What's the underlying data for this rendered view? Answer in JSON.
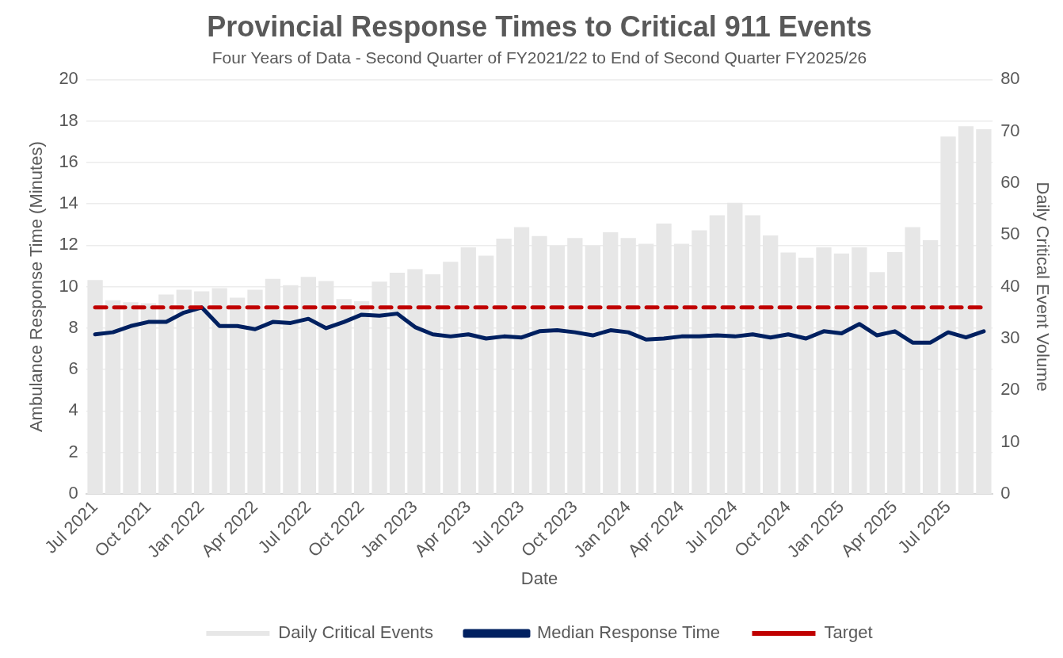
{
  "chart_data": {
    "type": "bar",
    "title": "Provincial Response Times to Critical 911 Events",
    "subtitle": "Four Years of Data - Second Quarter of FY2021/22 to End of Second Quarter FY2025/26",
    "xlabel": "Date",
    "ylabel": "Ambulance Response Time (Minutes)",
    "y2label": "Daily Critical Event Volume",
    "categories": [
      "Jul 2021",
      null,
      null,
      "Oct 2021",
      null,
      null,
      "Jan 2022",
      null,
      null,
      "Apr 2022",
      null,
      null,
      "Jul 2022",
      null,
      null,
      "Oct 2022",
      null,
      null,
      "Jan 2023",
      null,
      null,
      "Apr 2023",
      null,
      null,
      "Jul 2023",
      null,
      null,
      "Oct 2023",
      null,
      null,
      "Jan 2024",
      null,
      null,
      "Apr 2024",
      null,
      null,
      "Jul 2024",
      null,
      null,
      "Oct 2024",
      null,
      null,
      "Jan 2025",
      null,
      null,
      "Apr 2025",
      null,
      null,
      "Jul 2025",
      null,
      null
    ],
    "series": [
      {
        "name": "Daily Critical Events",
        "axis": "y2",
        "color": "#e7e7e7",
        "values": [
          41.3,
          37.4,
          37,
          36.8,
          38.5,
          39.4,
          39.1,
          39.7,
          37.9,
          39.4,
          41.5,
          40.3,
          41.9,
          41.1,
          37.6,
          37.2,
          41,
          42.7,
          43.4,
          42.4,
          44.8,
          47.6,
          46,
          49.3,
          51.5,
          49.8,
          47.9,
          49.4,
          47.9,
          50.5,
          49.4,
          48.3,
          52.2,
          48.3,
          50.9,
          53.8,
          56.2,
          53.8,
          49.9,
          46.6,
          45.6,
          47.6,
          46.4,
          47.6,
          42.8,
          46.7,
          51.5,
          49,
          69,
          71,
          70.4
        ]
      },
      {
        "name": "Median Response Time",
        "type": "line",
        "color": "#002060",
        "values": [
          7.7,
          7.8,
          8.1,
          8.3,
          8.3,
          8.75,
          9,
          8.1,
          8.1,
          7.95,
          8.3,
          8.25,
          8.45,
          8,
          8.3,
          8.65,
          8.6,
          8.7,
          8.05,
          7.7,
          7.6,
          7.7,
          7.5,
          7.6,
          7.55,
          7.85,
          7.9,
          7.8,
          7.65,
          7.9,
          7.8,
          7.45,
          7.5,
          7.6,
          7.6,
          7.65,
          7.6,
          7.7,
          7.55,
          7.7,
          7.5,
          7.85,
          7.75,
          8.2,
          7.65,
          7.85,
          7.3,
          7.3,
          7.8,
          7.55,
          7.85
        ]
      }
    ],
    "ref_lines": [
      {
        "axis": "y",
        "value": 9,
        "label": "Target",
        "color": "#c00000",
        "line_style": "dashed"
      }
    ],
    "ylim": [
      0,
      20
    ],
    "yticks": [
      0,
      2,
      4,
      6,
      8,
      10,
      12,
      14,
      16,
      18,
      20
    ],
    "y2lim": [
      0,
      80
    ],
    "y2ticks": [
      0,
      10,
      20,
      30,
      40,
      50,
      60,
      70,
      80
    ],
    "grid": "y",
    "legend": "bottom",
    "marker": "none"
  }
}
